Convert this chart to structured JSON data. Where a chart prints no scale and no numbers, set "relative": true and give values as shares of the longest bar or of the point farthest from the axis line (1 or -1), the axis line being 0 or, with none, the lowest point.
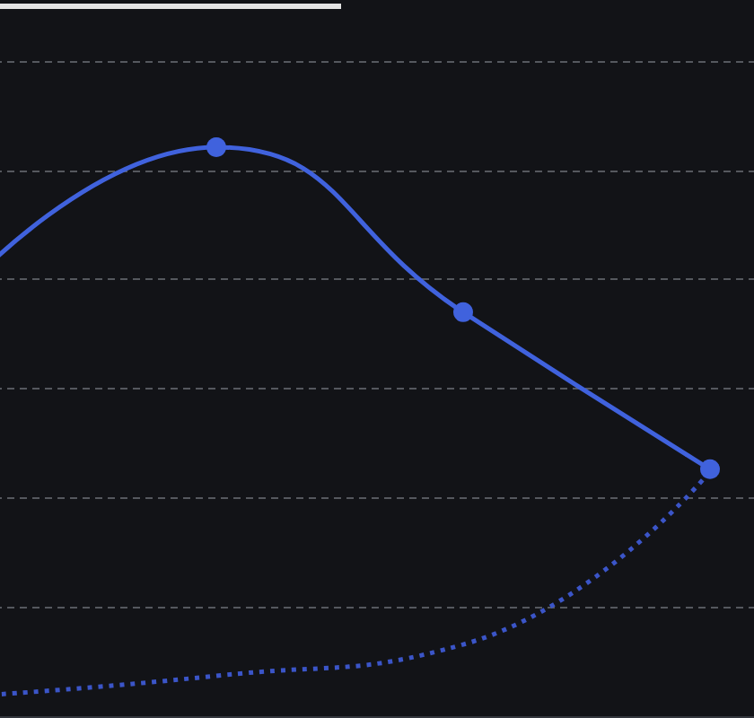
{
  "chart_data": {
    "type": "line",
    "relative": true,
    "grid": "y",
    "categories": [
      null,
      null,
      null,
      null,
      null
    ],
    "series": [
      {
        "color": "#3b55c8",
        "marker": "none",
        "line_style": "dotted",
        "values": [
          0.035,
          0.071,
          0.126,
          0.43,
          null
        ]
      },
      {
        "color": "#4062dd",
        "marker": "circle",
        "line_style": "solid",
        "values": [
          0.76,
          1,
          0.71,
          0.434,
          null
        ]
      }
    ]
  }
}
